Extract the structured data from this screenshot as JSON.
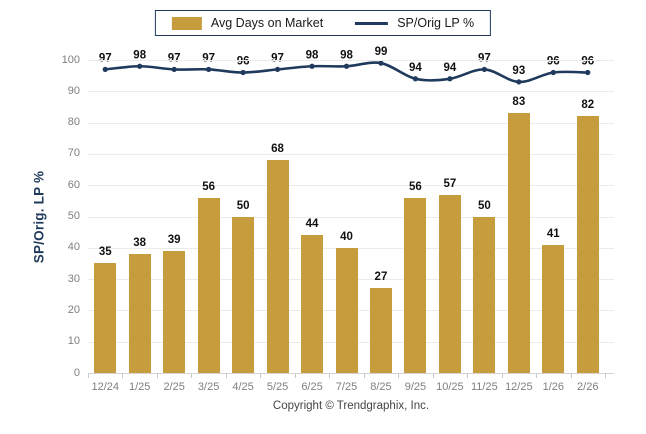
{
  "chart_data": {
    "type": "bar",
    "subtype": "bar-with-line-overlay",
    "categories": [
      "12/24",
      "1/25",
      "2/25",
      "3/25",
      "4/25",
      "5/25",
      "6/25",
      "7/25",
      "8/25",
      "9/25",
      "10/25",
      "11/25",
      "12/25",
      "1/26",
      "2/26"
    ],
    "series": [
      {
        "name": "Avg Days on Market",
        "type": "bar",
        "color": "#C69C3D",
        "values": [
          35,
          38,
          39,
          56,
          50,
          68,
          44,
          40,
          27,
          56,
          57,
          50,
          83,
          41,
          82
        ]
      },
      {
        "name": "SP/Orig LP %",
        "type": "line",
        "color": "#1F3A5C",
        "values": [
          97,
          98,
          97,
          97,
          96,
          97,
          98,
          98,
          99,
          94,
          94,
          97,
          93,
          96,
          96
        ]
      }
    ],
    "title": "",
    "xlabel": "",
    "ylabel": "SP/Orig. LP %",
    "ylim": [
      0,
      100
    ],
    "ytick_step": 10,
    "grid": true,
    "legend_position": "top-center",
    "data_labels_shown": true,
    "footer": "Copyright © Trendgraphix, Inc."
  },
  "colors": {
    "bar": "#C69C3D",
    "line": "#1F3A5C",
    "axis_text": "#7f7f7f",
    "data_label_text": "#111111",
    "grid": "#ebebeb",
    "footer_text": "#454545"
  }
}
